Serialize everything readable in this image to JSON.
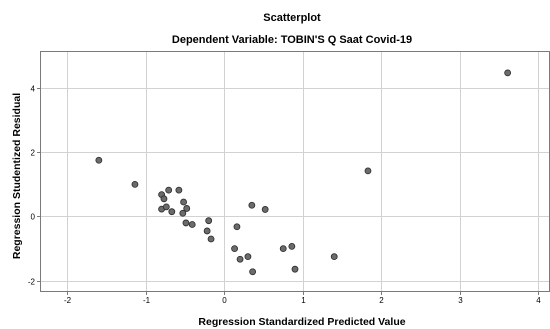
{
  "chart_data": {
    "type": "scatter",
    "title": "Scatterplot",
    "subtitle": "Dependent Variable: TOBIN'S Q Saat Covid-19",
    "xlabel": "Regression Standardized Predicted Value",
    "ylabel": "Regression Studentized Residual",
    "xlim": [
      -2.35,
      4.15
    ],
    "ylim": [
      -2.35,
      5.15
    ],
    "x_ticks": [
      -2,
      -1,
      0,
      1,
      2,
      3,
      4
    ],
    "y_ticks": [
      -2,
      0,
      2,
      4
    ],
    "x_tick_labels": [
      "-2",
      "-1",
      "0",
      "1",
      "2",
      "3",
      "4"
    ],
    "y_tick_labels": [
      "-2",
      "0",
      "2",
      "4"
    ],
    "grid": true,
    "marker_color": "#6b6b6b",
    "marker_edge_color": "#2a2a2a",
    "grid_color": "#d2d2d2",
    "frame_color": "#7a7a7a",
    "points": [
      {
        "x": -1.6,
        "y": 1.75
      },
      {
        "x": -1.14,
        "y": 1.0
      },
      {
        "x": -0.8,
        "y": 0.68
      },
      {
        "x": -0.77,
        "y": 0.55
      },
      {
        "x": -0.8,
        "y": 0.23
      },
      {
        "x": -0.74,
        "y": 0.3
      },
      {
        "x": -0.71,
        "y": 0.82
      },
      {
        "x": -0.67,
        "y": 0.15
      },
      {
        "x": -0.58,
        "y": 0.82
      },
      {
        "x": -0.52,
        "y": 0.45
      },
      {
        "x": -0.48,
        "y": 0.25
      },
      {
        "x": -0.53,
        "y": 0.1
      },
      {
        "x": -0.49,
        "y": -0.2
      },
      {
        "x": -0.41,
        "y": -0.25
      },
      {
        "x": -0.22,
        "y": -0.45
      },
      {
        "x": -0.2,
        "y": -0.13
      },
      {
        "x": -0.17,
        "y": -0.7
      },
      {
        "x": 0.13,
        "y": -1.0
      },
      {
        "x": 0.16,
        "y": -0.32
      },
      {
        "x": 0.2,
        "y": -1.33
      },
      {
        "x": 0.3,
        "y": -1.25
      },
      {
        "x": 0.35,
        "y": 0.35
      },
      {
        "x": 0.36,
        "y": -1.72
      },
      {
        "x": 0.52,
        "y": 0.22
      },
      {
        "x": 0.75,
        "y": -1.0
      },
      {
        "x": 0.86,
        "y": -0.93
      },
      {
        "x": 0.9,
        "y": -1.64
      },
      {
        "x": 1.4,
        "y": -1.25
      },
      {
        "x": 1.83,
        "y": 1.42
      },
      {
        "x": 3.61,
        "y": 4.47
      }
    ]
  }
}
